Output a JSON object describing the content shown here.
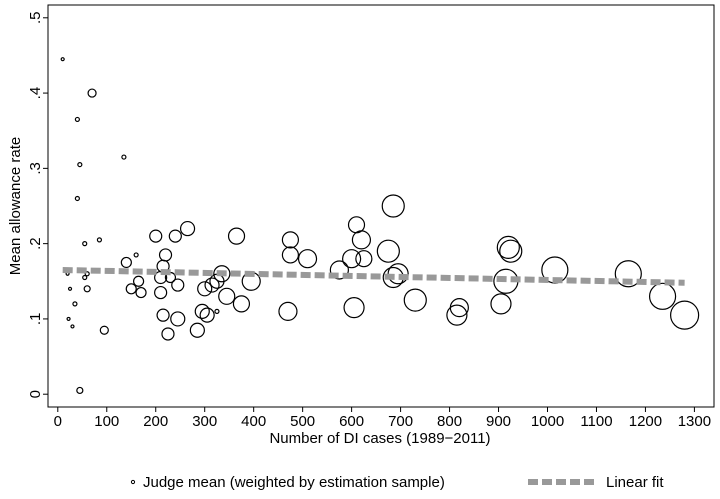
{
  "chart_data": {
    "type": "scatter",
    "x_label": "Number of DI cases (1989−2011)",
    "y_label": "Mean allowance rate",
    "xlim": [
      -20,
      1340
    ],
    "ylim": [
      -0.017,
      0.517
    ],
    "xticks": [
      0,
      100,
      200,
      300,
      400,
      500,
      600,
      700,
      800,
      900,
      1000,
      1100,
      1200,
      1300
    ],
    "yticks": [
      0,
      {
        "value": 0.1,
        "label": ".1"
      },
      {
        "value": 0.2,
        "label": ".2"
      },
      {
        "value": 0.3,
        "label": ".3"
      },
      {
        "value": 0.4,
        "label": ".4"
      },
      {
        "value": 0.5,
        "label": ".5"
      }
    ],
    "series": [
      {
        "name": "Judge mean (weighted by estimation sample)",
        "type": "scatter",
        "color": "#000000",
        "x": [
          10,
          20,
          22,
          25,
          30,
          35,
          40,
          40,
          45,
          45,
          55,
          55,
          60,
          60,
          70,
          85,
          95,
          135,
          140,
          150,
          160,
          165,
          170,
          200,
          210,
          210,
          215,
          215,
          220,
          225,
          230,
          240,
          245,
          245,
          265,
          285,
          295,
          300,
          305,
          315,
          325,
          325,
          335,
          345,
          365,
          375,
          395,
          470,
          475,
          475,
          510,
          575,
          600,
          605,
          610,
          620,
          625,
          675,
          685,
          685,
          695,
          730,
          815,
          820,
          905,
          915,
          920,
          925,
          1015,
          1165,
          1235,
          1280
        ],
        "values": [
          0.445,
          0.16,
          0.1,
          0.14,
          0.09,
          0.12,
          0.26,
          0.365,
          0.305,
          0.005,
          0.155,
          0.2,
          0.16,
          0.14,
          0.4,
          0.205,
          0.085,
          0.315,
          0.175,
          0.14,
          0.185,
          0.15,
          0.135,
          0.21,
          0.155,
          0.135,
          0.17,
          0.105,
          0.185,
          0.08,
          0.155,
          0.21,
          0.145,
          0.1,
          0.22,
          0.085,
          0.11,
          0.14,
          0.105,
          0.145,
          0.11,
          0.15,
          0.16,
          0.13,
          0.21,
          0.12,
          0.15,
          0.11,
          0.185,
          0.205,
          0.18,
          0.165,
          0.18,
          0.115,
          0.225,
          0.205,
          0.18,
          0.19,
          0.25,
          0.155,
          0.16,
          0.125,
          0.105,
          0.115,
          0.12,
          0.15,
          0.195,
          0.19,
          0.165,
          0.16,
          0.13,
          0.105
        ],
        "sizes": [
          1.5,
          1.5,
          1.5,
          1.5,
          1.5,
          2,
          2,
          2,
          2,
          3,
          2,
          2,
          2,
          3,
          4,
          2,
          4,
          2,
          5,
          5,
          2,
          5,
          5,
          6,
          6,
          6,
          6,
          6,
          6,
          6,
          5,
          6,
          6,
          7,
          7,
          7,
          7,
          7,
          7,
          7,
          2,
          7,
          8,
          8,
          8,
          8,
          9,
          9,
          8,
          8,
          9,
          9,
          9,
          10,
          8,
          9,
          8,
          11,
          11,
          10,
          10,
          11,
          10,
          9,
          10,
          12,
          11,
          11,
          13,
          13,
          13,
          14
        ]
      },
      {
        "name": "Linear fit",
        "type": "line",
        "color": "#999999",
        "x": [
          10,
          1280
        ],
        "values": [
          0.165,
          0.148
        ]
      }
    ]
  }
}
